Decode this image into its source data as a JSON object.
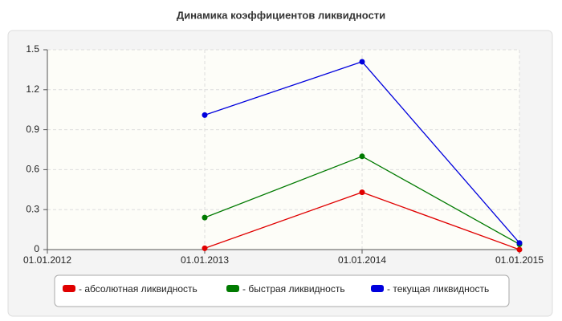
{
  "chart_data": {
    "type": "line",
    "title": "Динамика коэффициентов ликвидности",
    "categories": [
      "01.01.2012",
      "01.01.2013",
      "01.01.2014",
      "01.01.2015"
    ],
    "series": [
      {
        "name": "- абсолютная ликвидность",
        "color": "#e00000",
        "values": [
          null,
          0.01,
          0.43,
          0.0
        ]
      },
      {
        "name": "- быстрая ликвидность",
        "color": "#007a00",
        "values": [
          null,
          0.24,
          0.7,
          0.04
        ]
      },
      {
        "name": "- текущая ликвидность",
        "color": "#0000dd",
        "values": [
          null,
          1.01,
          1.41,
          0.05
        ]
      }
    ],
    "ylim": [
      0,
      1.5
    ],
    "yticks": [
      0,
      0.3,
      0.6,
      0.9,
      1.2,
      1.5
    ],
    "grid": true,
    "legend": "bottom"
  }
}
